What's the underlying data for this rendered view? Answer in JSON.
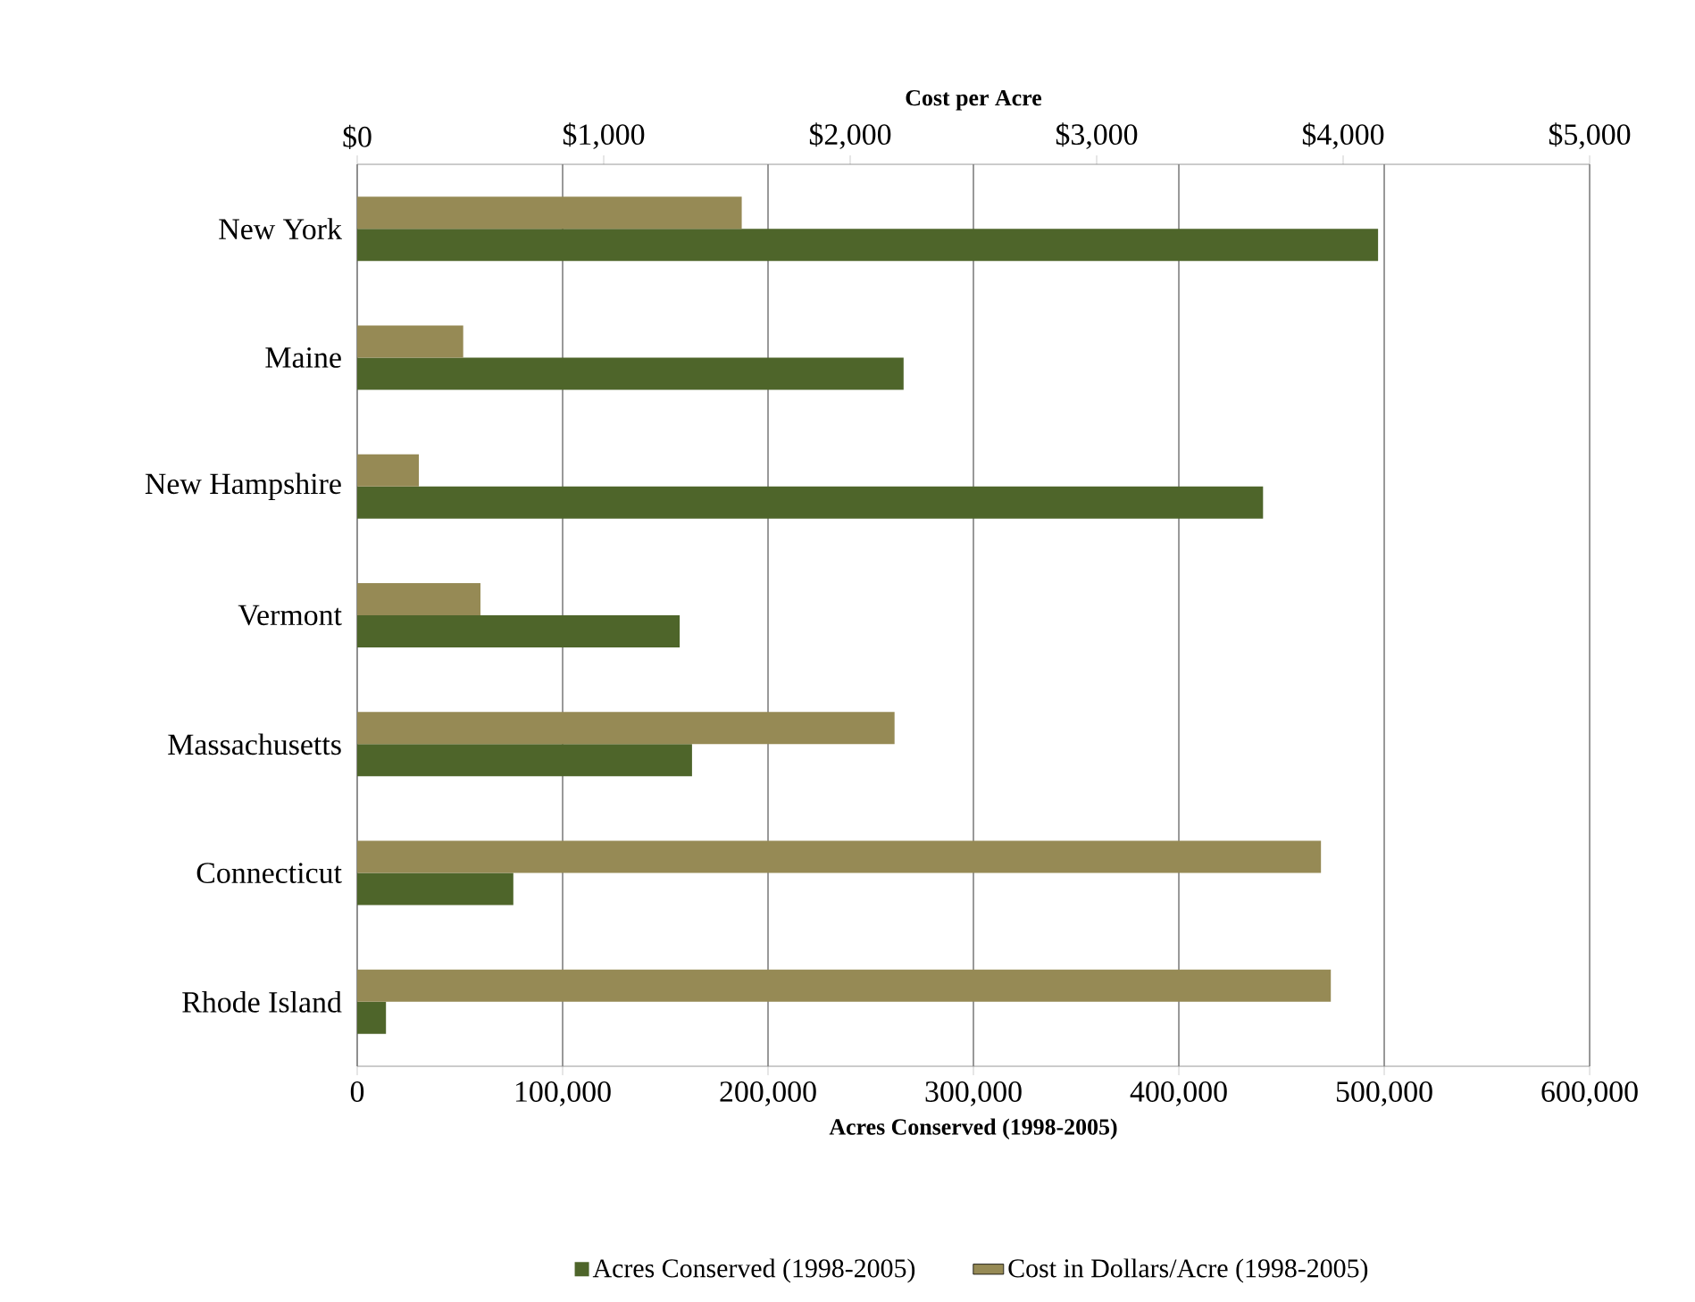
{
  "chart_data": {
    "type": "bar",
    "orientation": "horizontal",
    "categories": [
      "New York",
      "Maine",
      "New Hampshire",
      "Vermont",
      "Massachusetts",
      "Connecticut",
      "Rhode Island"
    ],
    "series": [
      {
        "name": "Acres Conserved (1998-2005)",
        "color": "#4e652a",
        "values": [
          497000,
          266000,
          441000,
          157000,
          163000,
          76000,
          14000
        ]
      },
      {
        "name": "Cost in Dollars/Acre (1998-2005)",
        "color": "#968a55",
        "axis": "x2",
        "values": [
          1560,
          430,
          250,
          500,
          2180,
          3910,
          3950
        ]
      }
    ],
    "xlabel": "Acres Conserved (1998-2005)",
    "x2label": "Cost per Acre",
    "xlim": [
      0,
      600000
    ],
    "xticks": [
      0,
      {
        "value": 100000,
        "label": "100,000"
      },
      {
        "value": 200000,
        "label": "200,000"
      },
      {
        "value": 300000,
        "label": "300,000"
      },
      {
        "value": 400000,
        "label": "400,000"
      },
      {
        "value": 500000,
        "label": "500,000"
      },
      {
        "value": 600000,
        "label": "600,000"
      }
    ],
    "x2lim": [
      0,
      5000
    ],
    "x2ticks": [
      {
        "value": 0,
        "label": "$0"
      },
      {
        "value": 1000,
        "label": "$1,000"
      },
      {
        "value": 2000,
        "label": "$2,000"
      },
      {
        "value": 3000,
        "label": "$3,000"
      },
      {
        "value": 4000,
        "label": "$4,000"
      },
      {
        "value": 5000,
        "label": "$5,000"
      }
    ],
    "grid": "x",
    "legend": "bottom"
  }
}
